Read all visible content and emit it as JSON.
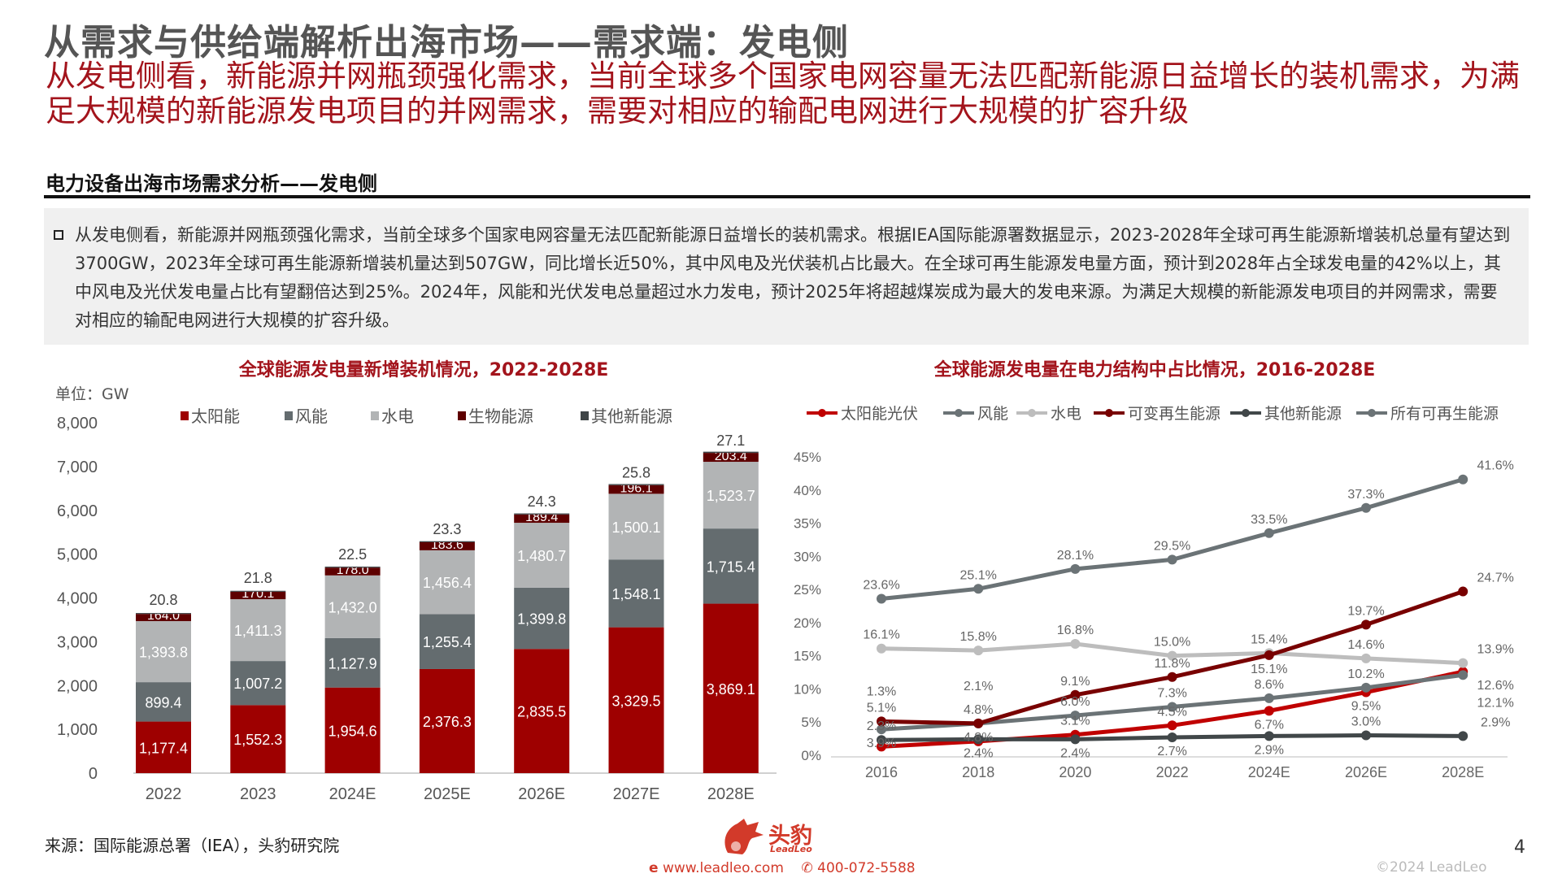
{
  "header": {
    "title": "从需求与供给端解析出海市场——需求端：发电侧",
    "subtitle": "从发电侧看，新能源并网瓶颈强化需求，当前全球多个国家电网容量无法匹配新能源日益增长的装机需求，为满足大规模的新能源发电项目的并网需求，需要对相应的输配电网进行大规模的扩容升级"
  },
  "section": {
    "heading": "电力设备出海市场需求分析——发电侧",
    "summary": "从发电侧看，新能源并网瓶颈强化需求，当前全球多个国家电网容量无法匹配新能源日益增长的装机需求。根据IEA国际能源署数据显示，2023-2028年全球可再生能源新增装机总量有望达到3700GW，2023年全球可再生能源新增装机量达到507GW，同比增长近50%，其中风电及光伏装机占比最大。在全球可再生能源发电量方面，预计到2028年占全球发电量的42%以上，其中风电及光伏发电量占比有望翻倍达到25%。2024年，风能和光伏发电总量超过水力发电，预计2025年将超越煤炭成为最大的发电来源。为满足大规模的新能源发电项目的并网需求，需要对相应的输配电网进行大规模的扩容升级。"
  },
  "chart_data": [
    {
      "type": "bar",
      "stacked": true,
      "title": "全球能源发电量新增装机情况，2022-2028E",
      "unit_label": "单位：GW",
      "categories": [
        "2022",
        "2023",
        "2024E",
        "2025E",
        "2026E",
        "2027E",
        "2028E"
      ],
      "ylim": [
        0,
        8000
      ],
      "yticks": [
        "0",
        "1,000",
        "2,000",
        "3,000",
        "4,000",
        "5,000",
        "6,000",
        "7,000",
        "8,000"
      ],
      "legend_position": "top",
      "grid": false,
      "series": [
        {
          "name": "太阳能",
          "color": "#9e0000",
          "values": [
            1177.4,
            1552.3,
            1954.6,
            2376.3,
            2835.5,
            3329.5,
            3869.1
          ],
          "labels": [
            "1,177.4",
            "1,552.3",
            "1,954.6",
            "2,376.3",
            "2,835.5",
            "3,329.5",
            "3,869.1"
          ]
        },
        {
          "name": "风能",
          "color": "#646c6f",
          "values": [
            899.4,
            1007.2,
            1127.9,
            1255.4,
            1399.8,
            1548.1,
            1715.4
          ],
          "labels": [
            "899.4",
            "1,007.2",
            "1,127.9",
            "1,255.4",
            "1,399.8",
            "1,548.1",
            "1,715.4"
          ]
        },
        {
          "name": "水电",
          "color": "#b2b4b5",
          "values": [
            1393.8,
            1411.3,
            1432.0,
            1456.4,
            1480.7,
            1500.1,
            1523.7
          ],
          "labels": [
            "1,393.8",
            "1,411.3",
            "1,432.0",
            "1,456.4",
            "1,480.7",
            "1,500.1",
            "1,523.7"
          ]
        },
        {
          "name": "生物能源",
          "color": "#5e0000",
          "values": [
            164.0,
            170.1,
            178.0,
            183.6,
            189.4,
            196.1,
            203.4
          ],
          "labels": [
            "164.0",
            "170.1",
            "178.0",
            "183.6",
            "189.4",
            "196.1",
            "203.4"
          ]
        },
        {
          "name": "其他新能源",
          "color": "#3f4547",
          "values": [
            20.8,
            21.8,
            22.5,
            23.3,
            24.3,
            25.8,
            27.1
          ],
          "labels": [
            "20.8",
            "21.8",
            "22.5",
            "23.3",
            "24.3",
            "25.8",
            "27.1"
          ]
        }
      ]
    },
    {
      "type": "line",
      "title": "全球能源发电量在电力结构中占比情况，2016-2028E",
      "categories": [
        "2016",
        "2018",
        "2020",
        "2022",
        "2024E",
        "2026E",
        "2028E"
      ],
      "ylim": [
        0,
        45
      ],
      "yticks": [
        "0%",
        "5%",
        "10%",
        "15%",
        "20%",
        "25%",
        "30%",
        "35%",
        "40%",
        "45%"
      ],
      "legend_position": "top",
      "grid": false,
      "series": [
        {
          "name": "太阳能光伏",
          "color": "#c00000",
          "values": [
            1.3,
            2.1,
            3.1,
            4.5,
            6.7,
            9.5,
            12.6
          ]
        },
        {
          "name": "风能",
          "color": "#6b7376",
          "values": [
            3.9,
            4.8,
            6.0,
            7.3,
            8.6,
            10.2,
            12.1
          ]
        },
        {
          "name": "水电",
          "color": "#bdbdbd",
          "values": [
            16.1,
            15.8,
            16.8,
            15.0,
            15.4,
            14.6,
            13.9
          ]
        },
        {
          "name": "可变再生能源",
          "color": "#780000",
          "values": [
            5.1,
            4.8,
            9.1,
            11.8,
            15.1,
            19.7,
            24.7
          ]
        },
        {
          "name": "其他新能源",
          "color": "#414749",
          "values": [
            2.3,
            2.4,
            2.4,
            2.7,
            2.9,
            3.0,
            2.9
          ]
        },
        {
          "name": "所有可再生能源",
          "color": "#6b7376",
          "values": [
            23.6,
            25.1,
            28.1,
            29.5,
            33.5,
            37.3,
            41.6
          ]
        }
      ]
    }
  ],
  "footer": {
    "source": "来源：国际能源总署（IEA），头豹研究院",
    "logo_cn": "头豹",
    "logo_en": "LeadLeo",
    "website": "www.leadleo.com",
    "phone": "400-072-5588",
    "copyright": "©2024 LeadLeo",
    "page_number": "4"
  }
}
